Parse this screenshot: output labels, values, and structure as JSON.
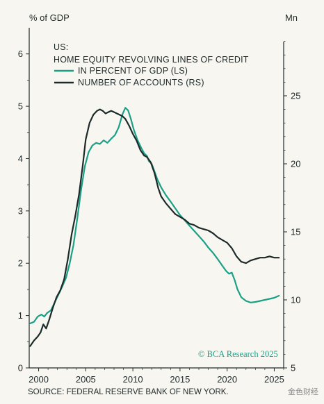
{
  "chart_data": {
    "type": "line",
    "left_axis_label": "% of GDP",
    "right_axis_label": "Mn",
    "left_ylim": [
      0,
      6.5
    ],
    "right_ylim": [
      5,
      30
    ],
    "x_ticks": [
      "2000",
      "2005",
      "2010",
      "2015",
      "2020",
      "2025"
    ],
    "left_ticks": [
      "0",
      "1",
      "2",
      "3",
      "4",
      "5",
      "6"
    ],
    "right_ticks": [
      "5",
      "10",
      "15",
      "20",
      "25"
    ],
    "legend": {
      "heading_line1": "US:",
      "heading_line2": "HOME EQUITY REVOLVING LINES OF CREDIT",
      "placement": "top-left"
    },
    "series": [
      {
        "name": "IN PERCENT OF GDP (LS)",
        "axis": "left",
        "color": "#1ba086",
        "x": [
          1999.1,
          1999.5,
          1999.9,
          2000.3,
          2000.6,
          2000.9,
          2001.3,
          2001.7,
          2002.1,
          2002.5,
          2002.9,
          2003.3,
          2003.7,
          2004.1,
          2004.5,
          2004.9,
          2005.3,
          2005.7,
          2006.1,
          2006.5,
          2006.9,
          2007.3,
          2007.7,
          2008.1,
          2008.5,
          2008.9,
          2009.2,
          2009.5,
          2009.8,
          2010.1,
          2010.5,
          2010.9,
          2011.2,
          2011.5,
          2011.7,
          2012.0,
          2012.3,
          2012.6,
          2013.0,
          2013.5,
          2014.0,
          2014.5,
          2015.0,
          2015.5,
          2016.0,
          2016.5,
          2017.0,
          2017.5,
          2018.0,
          2018.5,
          2019.0,
          2019.5,
          2019.9,
          2020.2,
          2020.5,
          2020.8,
          2021.1,
          2021.5,
          2022.0,
          2022.5,
          2023.0,
          2023.5,
          2024.0,
          2024.5,
          2025.0,
          2025.5
        ],
        "values": [
          0.85,
          0.88,
          0.98,
          1.02,
          0.98,
          1.05,
          1.1,
          1.25,
          1.4,
          1.55,
          1.72,
          2.0,
          2.35,
          2.85,
          3.4,
          3.85,
          4.12,
          4.25,
          4.3,
          4.28,
          4.35,
          4.3,
          4.38,
          4.45,
          4.6,
          4.85,
          4.97,
          4.92,
          4.75,
          4.55,
          4.35,
          4.2,
          4.1,
          4.05,
          3.95,
          3.9,
          3.75,
          3.6,
          3.45,
          3.3,
          3.18,
          3.05,
          2.92,
          2.82,
          2.72,
          2.62,
          2.52,
          2.42,
          2.3,
          2.2,
          2.08,
          1.95,
          1.85,
          1.8,
          1.82,
          1.68,
          1.5,
          1.35,
          1.28,
          1.25,
          1.26,
          1.28,
          1.3,
          1.32,
          1.34,
          1.38
        ]
      },
      {
        "name": "NUMBER OF ACCOUNTS (RS)",
        "axis": "right",
        "color": "#1d2a2a",
        "x": [
          1999.1,
          1999.5,
          1999.9,
          2000.2,
          2000.5,
          2000.8,
          2001.1,
          2001.5,
          2001.9,
          2002.3,
          2002.7,
          2003.1,
          2003.5,
          2003.9,
          2004.3,
          2004.7,
          2005.0,
          2005.4,
          2005.8,
          2006.2,
          2006.5,
          2006.8,
          2007.1,
          2007.4,
          2007.7,
          2008.0,
          2008.3,
          2008.6,
          2008.9,
          2009.2,
          2009.6,
          2010.0,
          2010.4,
          2010.8,
          2011.2,
          2011.5,
          2011.9,
          2012.3,
          2012.7,
          2013.0,
          2013.5,
          2014.0,
          2014.5,
          2015.0,
          2015.5,
          2016.0,
          2016.5,
          2017.0,
          2017.5,
          2018.0,
          2018.5,
          2019.0,
          2019.5,
          2020.0,
          2020.5,
          2021.0,
          2021.5,
          2022.0,
          2022.5,
          2023.0,
          2023.5,
          2024.0,
          2024.5,
          2025.0,
          2025.5
        ],
        "values": [
          6.6,
          7.0,
          7.3,
          7.6,
          8.2,
          7.9,
          8.5,
          9.4,
          10.2,
          10.7,
          11.5,
          13.0,
          14.8,
          16.2,
          17.8,
          20.0,
          21.8,
          23.0,
          23.6,
          23.9,
          24.0,
          23.9,
          23.7,
          23.8,
          23.9,
          23.8,
          23.7,
          23.6,
          23.5,
          23.3,
          22.8,
          22.2,
          21.7,
          21.0,
          20.6,
          20.5,
          20.1,
          19.3,
          18.2,
          17.6,
          17.1,
          16.7,
          16.3,
          16.1,
          15.9,
          15.6,
          15.5,
          15.3,
          15.2,
          15.1,
          14.9,
          14.6,
          14.4,
          14.2,
          13.8,
          13.2,
          12.8,
          12.7,
          12.9,
          13.0,
          13.1,
          13.1,
          13.2,
          13.1,
          13.1
        ]
      }
    ],
    "credit": "© BCA Research 2025",
    "source": "SOURCE: FEDERAL RESERVE BANK OF NEW YORK.",
    "watermark": "金色财经"
  }
}
